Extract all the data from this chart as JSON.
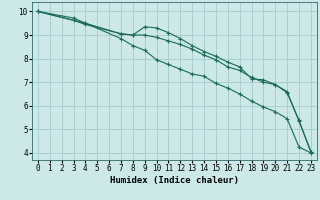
{
  "title": "",
  "xlabel": "Humidex (Indice chaleur)",
  "bg_color": "#cce8e8",
  "grid_color": "#aacece",
  "line_color": "#1a6b5a",
  "xlim": [
    -0.5,
    23.5
  ],
  "ylim": [
    3.7,
    10.4
  ],
  "yticks": [
    4,
    5,
    6,
    7,
    8,
    9,
    10
  ],
  "xticks": [
    0,
    1,
    2,
    3,
    4,
    5,
    6,
    7,
    8,
    9,
    10,
    11,
    12,
    13,
    14,
    15,
    16,
    17,
    18,
    19,
    20,
    21,
    22,
    23
  ],
  "line1_x": [
    0,
    3,
    4,
    7,
    8,
    9,
    10,
    11,
    12,
    13,
    14,
    15,
    16,
    17,
    18,
    19,
    20,
    21,
    22,
    23
  ],
  "line1_y": [
    10.0,
    9.72,
    9.5,
    9.05,
    9.0,
    9.35,
    9.3,
    9.1,
    8.85,
    8.55,
    8.3,
    8.1,
    7.85,
    7.65,
    7.15,
    7.1,
    6.9,
    6.6,
    5.35,
    4.05
  ],
  "line2_x": [
    0,
    3,
    4,
    7,
    8,
    9,
    10,
    11,
    12,
    13,
    14,
    15,
    16,
    17,
    18,
    19,
    20,
    21,
    22,
    23
  ],
  "line2_y": [
    10.0,
    9.62,
    9.45,
    9.05,
    9.0,
    9.0,
    8.9,
    8.75,
    8.6,
    8.4,
    8.15,
    7.95,
    7.65,
    7.5,
    7.2,
    7.0,
    6.9,
    6.55,
    5.38,
    4.05
  ],
  "line3_x": [
    0,
    4,
    7,
    8,
    9,
    10,
    11,
    12,
    13,
    14,
    15,
    16,
    17,
    18,
    19,
    20,
    21,
    22,
    23
  ],
  "line3_y": [
    10.0,
    9.5,
    8.85,
    8.55,
    8.35,
    7.95,
    7.75,
    7.55,
    7.35,
    7.25,
    6.95,
    6.75,
    6.5,
    6.2,
    5.95,
    5.75,
    5.45,
    4.25,
    4.0
  ]
}
